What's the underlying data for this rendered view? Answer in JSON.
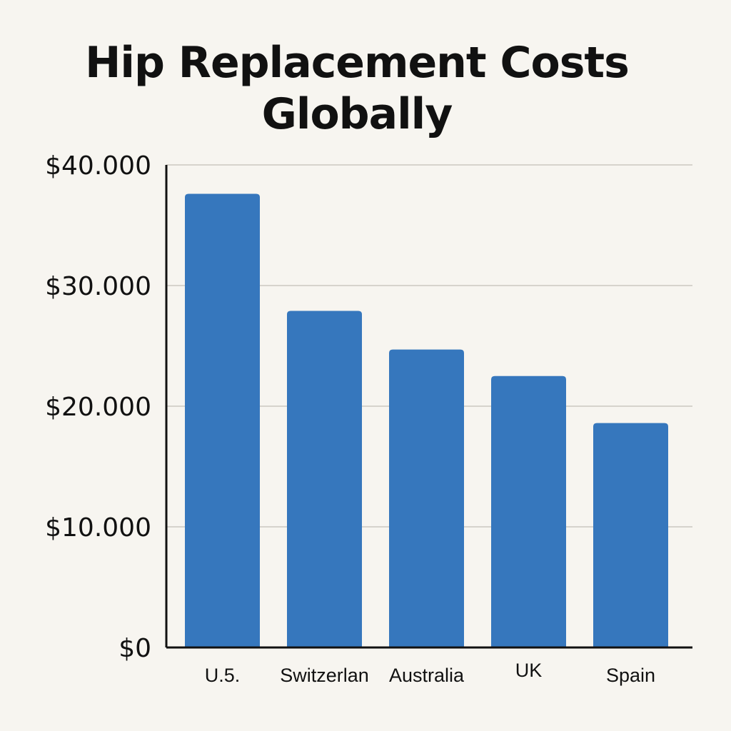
{
  "chart_data": {
    "type": "bar",
    "title": "Hip Replacement Costs Globally",
    "categories": [
      "U.5.",
      "Switzerlan",
      "Australia",
      "UK",
      "Spain"
    ],
    "values": [
      37600,
      27900,
      24700,
      22500,
      18600
    ],
    "ylim": [
      0,
      40000
    ],
    "yticks": [
      0,
      10000,
      20000,
      30000,
      40000
    ],
    "ytick_labels": [
      "$0",
      "$10.000",
      "$20.000",
      "$30.000",
      "$40.000"
    ],
    "xlabel": "",
    "ylabel": "",
    "grid": true,
    "bar_color": "#3677bd",
    "gridline_color": "#d6d3cc"
  }
}
